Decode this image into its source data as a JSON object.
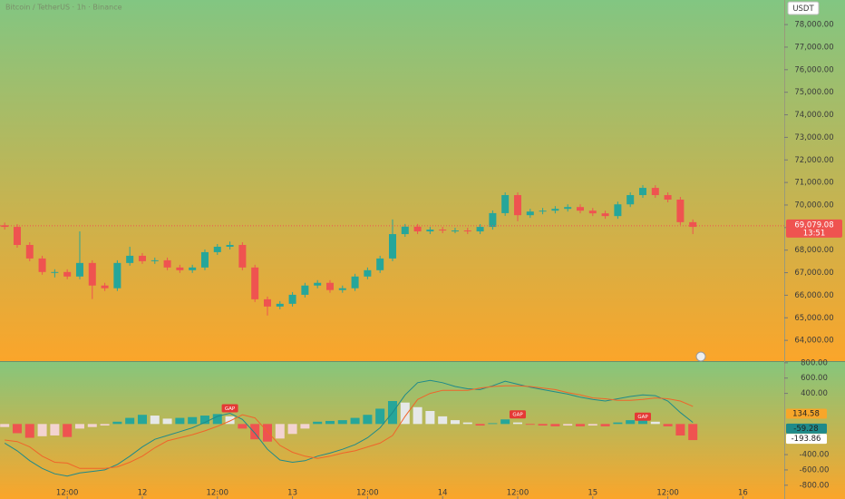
{
  "chart_data": [
    {
      "type": "candlestick",
      "title": "Bitcoin / TetherUS · 1h · Binance",
      "currency": "USDT",
      "up_color": "#26a69a",
      "down_color": "#ef5350",
      "x": [
        -22,
        -20,
        -18,
        -16,
        -14,
        -12,
        -10,
        -8,
        -6,
        -4,
        -2,
        0,
        2,
        4,
        6,
        8,
        10,
        12,
        14,
        16,
        18,
        20,
        22,
        24,
        26,
        28,
        30,
        32,
        34,
        36,
        38,
        40,
        42,
        44,
        46,
        48,
        50,
        52,
        54,
        56,
        58,
        60,
        62,
        64,
        66,
        68,
        70,
        72,
        74,
        76,
        78,
        80,
        82,
        84,
        86,
        88
      ],
      "open": [
        69100,
        69030,
        68230,
        67630,
        67030,
        67030,
        66830,
        67430,
        66430,
        66310,
        67430,
        67750,
        67510,
        67550,
        67230,
        67110,
        67230,
        67910,
        68150,
        68230,
        67230,
        65820,
        65500,
        65620,
        66020,
        66430,
        66550,
        66230,
        66310,
        66830,
        67110,
        67630,
        68710,
        69040,
        68830,
        68910,
        68870,
        68870,
        68830,
        69030,
        69640,
        70440,
        69550,
        69710,
        69750,
        69830,
        69910,
        69750,
        69630,
        69510,
        70030,
        70440,
        70760,
        70440,
        70240,
        69240
      ],
      "high": [
        69220,
        69150,
        68350,
        67750,
        67150,
        67150,
        68830,
        67550,
        66550,
        67550,
        68150,
        67870,
        67670,
        67670,
        67350,
        67350,
        68030,
        68270,
        68380,
        68350,
        67350,
        65940,
        65740,
        66140,
        66550,
        66670,
        66670,
        66430,
        66950,
        67230,
        67750,
        69360,
        69160,
        69160,
        69030,
        69030,
        68990,
        68990,
        69150,
        69760,
        70560,
        70560,
        69830,
        69870,
        69950,
        70030,
        70030,
        69870,
        69750,
        70150,
        70560,
        70880,
        70880,
        70560,
        70360,
        69360
      ],
      "low": [
        68910,
        68110,
        67510,
        66910,
        66790,
        66710,
        66710,
        65830,
        66190,
        66190,
        67310,
        67390,
        67390,
        67110,
        66990,
        66990,
        67110,
        67790,
        68030,
        67110,
        65700,
        65100,
        65380,
        65500,
        65900,
        66310,
        66110,
        66110,
        66190,
        66710,
        66990,
        67510,
        68590,
        68710,
        68710,
        68750,
        68750,
        68710,
        68710,
        68910,
        69520,
        69280,
        69430,
        69590,
        69630,
        69710,
        69630,
        69510,
        69390,
        69390,
        69910,
        70320,
        70320,
        70120,
        69120,
        68710
      ],
      "close": [
        69030,
        68230,
        67630,
        67030,
        67030,
        66830,
        67430,
        66430,
        66310,
        67430,
        67750,
        67510,
        67550,
        67230,
        67110,
        67230,
        67910,
        68150,
        68230,
        67230,
        65820,
        65500,
        65620,
        66020,
        66430,
        66550,
        66230,
        66310,
        66830,
        67110,
        67630,
        68710,
        69040,
        68830,
        68910,
        68870,
        68870,
        68830,
        69030,
        69640,
        70440,
        69550,
        69710,
        69750,
        69830,
        69910,
        69750,
        69630,
        69510,
        70030,
        70440,
        70760,
        70440,
        70240,
        69240,
        69030
      ],
      "xlim": [
        -22.75,
        102.61
      ],
      "ylim": [
        63080,
        79090
      ],
      "yticks": [
        {
          "value": 78000,
          "label": "78,000.00"
        },
        {
          "value": 77000,
          "label": "77,000.00"
        },
        {
          "value": 76000,
          "label": "76,000.00"
        },
        {
          "value": 75000,
          "label": "75,000.00"
        },
        {
          "value": 74000,
          "label": "74,000.00"
        },
        {
          "value": 73000,
          "label": "73,000.00"
        },
        {
          "value": 72000,
          "label": "72,000.00"
        },
        {
          "value": 71000,
          "label": "71,000.00"
        },
        {
          "value": 70000,
          "label": "70,000.00"
        },
        {
          "value": 69000,
          "label": "69,000.00"
        },
        {
          "value": 68000,
          "label": "68,000.00"
        },
        {
          "value": 67000,
          "label": "67,000.00"
        },
        {
          "value": 66000,
          "label": "66,000.00"
        },
        {
          "value": 65000,
          "label": "65,000.00"
        },
        {
          "value": 64000,
          "label": "64,000.00"
        }
      ],
      "last_price": {
        "value": 69079.08,
        "label": "69,079.08",
        "countdown": "13:51",
        "color": "#ef5350"
      }
    },
    {
      "type": "macd",
      "x": [
        -22,
        -20,
        -18,
        -16,
        -14,
        -12,
        -10,
        -8,
        -6,
        -4,
        -2,
        0,
        2,
        4,
        6,
        8,
        10,
        12,
        14,
        16,
        18,
        20,
        22,
        24,
        26,
        28,
        30,
        32,
        34,
        36,
        38,
        40,
        42,
        44,
        46,
        48,
        50,
        52,
        54,
        56,
        58,
        60,
        62,
        64,
        66,
        68,
        70,
        72,
        74,
        76,
        78,
        80,
        82,
        84,
        86,
        88
      ],
      "histogram": [
        -40,
        -120,
        -180,
        -160,
        -150,
        -170,
        -60,
        -40,
        -20,
        30,
        80,
        120,
        110,
        70,
        80,
        90,
        110,
        130,
        100,
        -60,
        -200,
        -230,
        -190,
        -130,
        -60,
        30,
        40,
        50,
        80,
        120,
        200,
        300,
        280,
        220,
        170,
        100,
        50,
        20,
        -20,
        10,
        60,
        20,
        -10,
        -20,
        -30,
        -20,
        -30,
        -20,
        -30,
        20,
        50,
        60,
        30,
        -30,
        -150,
        -210
      ],
      "hist_colors": {
        "up_rising": "#26a69a",
        "up_falling": "#e6e8e8",
        "down_falling": "#ef5350",
        "down_rising": "#f3d3d1"
      },
      "series": [
        {
          "color": "#1f8a8a",
          "values": [
            -250,
            -350,
            -480,
            -580,
            -650,
            -680,
            -640,
            -620,
            -600,
            -530,
            -420,
            -300,
            -200,
            -150,
            -100,
            -50,
            20,
            100,
            140,
            60,
            -120,
            -330,
            -470,
            -500,
            -480,
            -420,
            -380,
            -330,
            -270,
            -180,
            -50,
            150,
            380,
            540,
            570,
            540,
            490,
            460,
            450,
            500,
            560,
            520,
            480,
            450,
            420,
            390,
            350,
            320,
            300,
            330,
            360,
            380,
            370,
            300,
            150,
            20
          ]
        },
        {
          "color": "#f0642a",
          "values": [
            -210,
            -230,
            -300,
            -420,
            -500,
            -510,
            -580,
            -580,
            -580,
            -560,
            -500,
            -420,
            -310,
            -220,
            -180,
            -140,
            -90,
            -30,
            40,
            120,
            80,
            -100,
            -280,
            -370,
            -420,
            -450,
            -420,
            -380,
            -350,
            -300,
            -250,
            -150,
            100,
            320,
            400,
            440,
            440,
            440,
            470,
            490,
            500,
            500,
            490,
            470,
            450,
            410,
            380,
            340,
            330,
            310,
            310,
            320,
            340,
            330,
            300,
            230
          ]
        }
      ],
      "last_values": [
        {
          "value": 134.58,
          "label": "134.58",
          "color": "#f7a62a"
        },
        {
          "value": -59.28,
          "label": "-59.28",
          "color": "#1f8a8a"
        },
        {
          "value": -193.86,
          "label": "-193.86",
          "color": "#ffffff"
        }
      ],
      "annotations": [
        {
          "text": "GAP",
          "x": 14,
          "y": 200
        },
        {
          "text": "GAP",
          "x": 60,
          "y": 120
        },
        {
          "text": "GAP",
          "x": 80,
          "y": 90
        }
      ],
      "xlim": [
        -22.75,
        102.61
      ],
      "xticks": [
        {
          "value": -12,
          "label": "12:00"
        },
        {
          "value": 0,
          "label": "12"
        },
        {
          "value": 12,
          "label": "12:00"
        },
        {
          "value": 24,
          "label": "13"
        },
        {
          "value": 36,
          "label": "12:00"
        },
        {
          "value": 48,
          "label": "14"
        },
        {
          "value": 60,
          "label": "12:00"
        },
        {
          "value": 72,
          "label": "15"
        },
        {
          "value": 84,
          "label": "12:00"
        },
        {
          "value": 96,
          "label": "16"
        }
      ],
      "ylim": [
        -980,
        810
      ],
      "yticks": [
        {
          "value": 800,
          "label": "800.00"
        },
        {
          "value": 600,
          "label": "600.00"
        },
        {
          "value": 400,
          "label": "400.00"
        },
        {
          "value": -400,
          "label": "-400.00"
        },
        {
          "value": -600,
          "label": "-600.00"
        },
        {
          "value": -800,
          "label": "-800.00"
        }
      ]
    }
  ]
}
